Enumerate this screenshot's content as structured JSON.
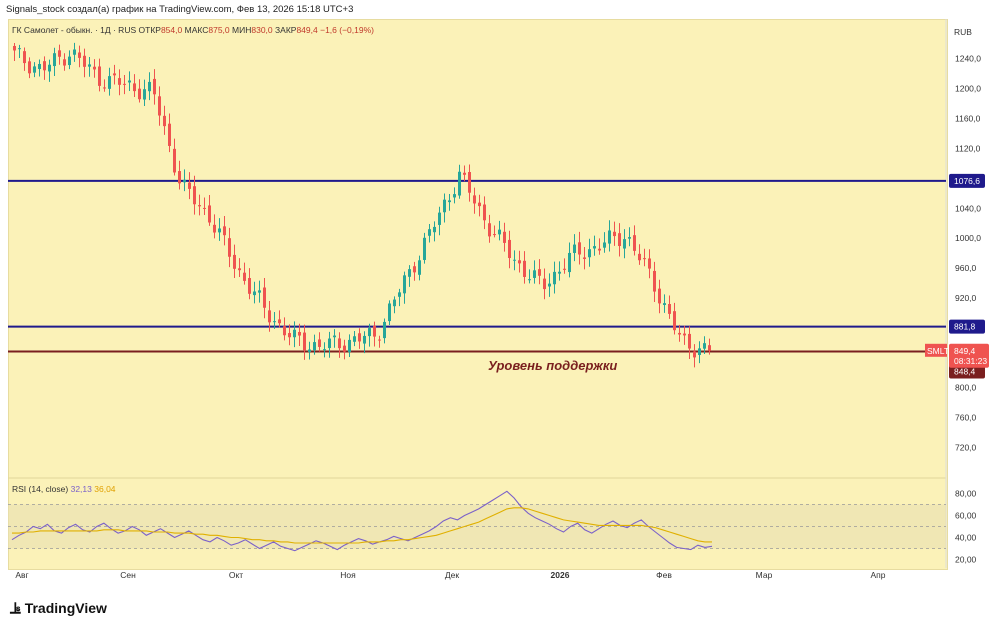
{
  "header": {
    "text": "Signals_stock создал(а) график на TradingView.com, Фев 13, 2026 15:18 UTC+3"
  },
  "legend": {
    "name": "ГК Самолет - обыкн. · 1Д · RUS",
    "open_label": "ОТКР",
    "open_value": "854,0",
    "high_label": "МАКС",
    "high_value": "875,0",
    "low_label": "МИН",
    "low_value": "830,0",
    "close_label": "ЗАКР",
    "close_value": "849,4",
    "change": "−1,6 (−0,19%)"
  },
  "currency": "RUB",
  "annotation": {
    "support": "Уровень поддержки"
  },
  "rsi_legend": {
    "label": "RSI (14, close)",
    "rsi": "32,13",
    "ma": "36,04"
  },
  "branding": {
    "logo_text": "TradingView"
  },
  "colors": {
    "background": "#fbf2b8",
    "candle_up": "#26a69a",
    "candle_down": "#ef5350",
    "level_blue": "#1f1a8c",
    "level_red": "#7a1f1f",
    "rsi_line": "#7b61c9",
    "rsi_ma": "#e0b000",
    "badge_price": "#ef5350",
    "badge_support": "#7a1f1f"
  },
  "chart_data": [
    {
      "type": "candlestick",
      "symbol": "SMLT",
      "price_ticks": [
        "1240,0",
        "1200,0",
        "1160,0",
        "1120,0",
        "1040,0",
        "1000,0",
        "960,0",
        "920,0",
        "800,0",
        "760,0",
        "720,0"
      ],
      "y_ticks_numeric": [
        1240,
        1200,
        1160,
        1120,
        1040,
        1000,
        960,
        920,
        800,
        760,
        720
      ],
      "ylim": [
        690,
        1265
      ],
      "x_ticks": [
        "Авг",
        "Сен",
        "Окт",
        "Ноя",
        "Дек",
        "2026",
        "Фев",
        "Мар",
        "Апр"
      ],
      "levels": [
        {
          "value": 1076.6,
          "label": "1076,6",
          "color": "#1f1a8c"
        },
        {
          "value": 881.8,
          "label": "881,8",
          "color": "#1f1a8c"
        },
        {
          "value": 848.4,
          "label": "848,4",
          "color": "#7a1f1f"
        }
      ],
      "last_price": {
        "ticker": "SMLT",
        "price": "849,4",
        "countdown": "08:31:23",
        "value": 849.4
      },
      "key_points": [
        [
          "Авг",
          1245
        ],
        [
          "Авг",
          1225
        ],
        [
          "Авг",
          1250
        ],
        [
          "Сен",
          1215
        ],
        [
          "Сен",
          1205
        ],
        [
          "Сен",
          1195
        ],
        [
          "Окт",
          1070
        ],
        [
          "Окт",
          1030
        ],
        [
          "Окт",
          960
        ],
        [
          "Окт",
          905
        ],
        [
          "Ноя",
          865
        ],
        [
          "Ноя",
          855
        ],
        [
          "Ноя",
          862
        ],
        [
          "Ноя",
          870
        ],
        [
          "Дек",
          940
        ],
        [
          "Дек",
          1010
        ],
        [
          "Дек",
          1085
        ],
        [
          "Дек",
          1020
        ],
        [
          "2026",
          970
        ],
        [
          "2026",
          935
        ],
        [
          "2026",
          975
        ],
        [
          "2026",
          990
        ],
        [
          "Фев",
          1005
        ],
        [
          "Фев",
          940
        ],
        [
          "Фев",
          860
        ],
        [
          "Фев",
          849.4
        ]
      ]
    },
    {
      "type": "line",
      "title": "RSI (14, close)",
      "y_ticks": [
        "80,00",
        "60,00",
        "40,00",
        "20,00"
      ],
      "y_ticks_numeric": [
        80,
        60,
        40,
        20
      ],
      "ylim": [
        15,
        85
      ],
      "bands": [
        70,
        50,
        30
      ],
      "series": [
        {
          "name": "RSI",
          "last": 32.13,
          "values": [
            38,
            42,
            45,
            50,
            48,
            52,
            46,
            44,
            49,
            52,
            47,
            45,
            50,
            53,
            48,
            44,
            46,
            50,
            47,
            42,
            45,
            48,
            44,
            40,
            43,
            46,
            42,
            38,
            36,
            40,
            37,
            33,
            35,
            38,
            34,
            30,
            33,
            36,
            32,
            30,
            28,
            31,
            34,
            37,
            35,
            32,
            29,
            33,
            36,
            39,
            37,
            34,
            36,
            38,
            41,
            39,
            37,
            40,
            43,
            46,
            50,
            55,
            58,
            56,
            60,
            63,
            66,
            70,
            74,
            78,
            82,
            76,
            68,
            62,
            58,
            55,
            52,
            48,
            45,
            50,
            53,
            47,
            44,
            48,
            52,
            55,
            51,
            49,
            53,
            56,
            50,
            45,
            40,
            35,
            31,
            30,
            29,
            33,
            31,
            32
          ]
        },
        {
          "name": "MA",
          "last": 36.04,
          "values": [
            44,
            44,
            45,
            45,
            46,
            46,
            46,
            46,
            46,
            46,
            46,
            46,
            46,
            47,
            47,
            47,
            46,
            46,
            46,
            46,
            45,
            45,
            45,
            44,
            44,
            44,
            43,
            43,
            42,
            42,
            41,
            40,
            40,
            39,
            38,
            38,
            37,
            37,
            36,
            36,
            35,
            35,
            35,
            35,
            35,
            35,
            35,
            35,
            35,
            35,
            36,
            36,
            36,
            37,
            37,
            38,
            38,
            39,
            40,
            41,
            42,
            44,
            46,
            48,
            50,
            52,
            54,
            57,
            60,
            63,
            66,
            67,
            67,
            66,
            64,
            62,
            60,
            58,
            56,
            55,
            54,
            53,
            52,
            51,
            51,
            51,
            51,
            51,
            51,
            51,
            50,
            49,
            47,
            45,
            43,
            41,
            39,
            37,
            36,
            36
          ]
        }
      ]
    }
  ]
}
